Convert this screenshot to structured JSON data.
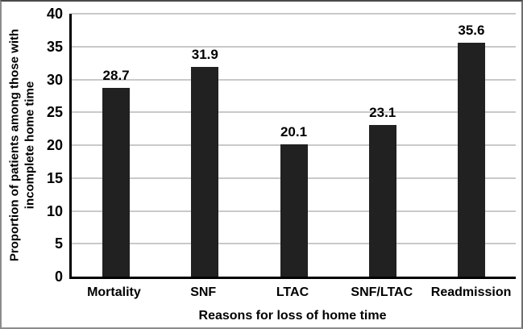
{
  "chart_data": {
    "type": "bar",
    "title": "",
    "categories": [
      "Mortality",
      "SNF",
      "LTAC",
      "SNF/LTAC",
      "Readmission"
    ],
    "values": [
      28.7,
      31.9,
      20.1,
      23.1,
      35.6
    ],
    "value_labels": [
      "28.7",
      "31.9",
      "20.1",
      "23.1",
      "35.6"
    ],
    "xlabel": "Reasons for loss of home time",
    "ylabel": "Proportion of patients among those with incomplete home time",
    "ylabel_lines": [
      "Proportion of patients among those with",
      "incomplete home time"
    ],
    "ylim": [
      0,
      40
    ],
    "yticks": [
      0,
      5,
      10,
      15,
      20,
      25,
      30,
      35,
      40
    ],
    "grid": "horizontal",
    "legend": "none",
    "bar_color": "#212121",
    "gridline_color": "#c9c9c9",
    "axis_color": "#000000",
    "text_color": "#000000",
    "background_color": "#ffffff",
    "frame_border_color": "#8c8c8c"
  }
}
